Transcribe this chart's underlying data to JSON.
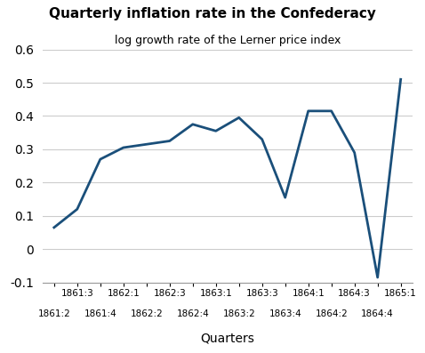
{
  "title": "Quarterly inflation rate in the Confederacy",
  "subtitle": "log growth rate of the Lerner price index",
  "xlabel": "Quarters",
  "line_color": "#1a4f7a",
  "line_width": 2.0,
  "background_color": "#ffffff",
  "ylim": [
    -0.1,
    0.6
  ],
  "yticks": [
    -0.1,
    0,
    0.1,
    0.2,
    0.3,
    0.4,
    0.5,
    0.6
  ],
  "quarters": [
    "1861:2",
    "1861:3",
    "1861:4",
    "1862:1",
    "1862:2",
    "1862:3",
    "1862:4",
    "1863:1",
    "1863:2",
    "1863:3",
    "1863:4",
    "1864:1",
    "1864:2",
    "1864:3",
    "1864:4",
    "1865:1"
  ],
  "values": [
    0.065,
    0.12,
    0.27,
    0.305,
    0.315,
    0.325,
    0.375,
    0.355,
    0.395,
    0.33,
    0.155,
    0.415,
    0.415,
    0.29,
    -0.085,
    0.51
  ],
  "top_label_indices": [
    1,
    3,
    5,
    7,
    9,
    11,
    13,
    15
  ],
  "bottom_label_indices": [
    0,
    2,
    4,
    6,
    8,
    10,
    12,
    14
  ]
}
